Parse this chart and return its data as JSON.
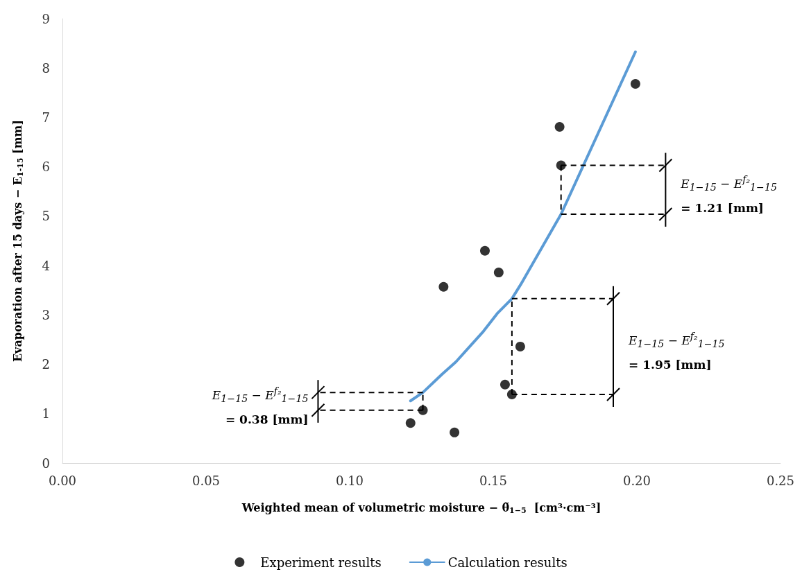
{
  "chart_data": {
    "type": "scatter",
    "xlabel": "Weighted mean of volumetric moisture − θ̃$_{1−5}$  [cm³·cm⁻³]",
    "ylabel": "Evaporation after 15 days − E$_{1-15}$ [mm]",
    "xlim": [
      0,
      0.25
    ],
    "ylim": [
      0,
      9
    ],
    "xticks": [
      {
        "value": 0,
        "label": "0.00"
      },
      0.05,
      {
        "value": 0.1,
        "label": "0.10"
      },
      0.15,
      {
        "value": 0.2,
        "label": "0.20"
      },
      0.25
    ],
    "yticks": [
      0,
      1,
      2,
      3,
      4,
      5,
      6,
      7,
      8,
      9
    ],
    "grid": false,
    "legend": "bottom",
    "series": [
      {
        "name": "Experiment results",
        "marker": "circle",
        "color": "#000000",
        "x": [
          0.1212,
          0.1255,
          0.1327,
          0.1365,
          0.1471,
          0.1519,
          0.1541,
          0.1565,
          0.1594,
          0.1731,
          0.1736,
          0.1995
        ],
        "values": [
          0.81,
          1.07,
          3.57,
          0.62,
          4.3,
          3.86,
          1.59,
          1.39,
          2.36,
          6.81,
          6.03,
          7.68
        ]
      },
      {
        "name": "Calculation results",
        "type": "line",
        "marker": "none",
        "color": "#5b9bd5",
        "x": [
          0.1212,
          0.1255,
          0.1322,
          0.137,
          0.1466,
          0.1514,
          0.1565,
          0.1596,
          0.1736,
          0.1995
        ],
        "values": [
          1.26,
          1.43,
          1.8,
          2.05,
          2.67,
          3.03,
          3.33,
          3.62,
          5.04,
          8.33
        ]
      }
    ],
    "annotations": [
      {
        "text": "E$_{1−15}$ − E$^{f₂}$$_{1−15}$\n= 0.38 [mm]",
        "x": 0.089,
        "y": 1.07
      },
      {
        "text": "E$_{1−15}$ − E$^{f₂}$$_{1−15}$\n= 1.95 [mm]",
        "x": 0.1918,
        "y": 1.39
      },
      {
        "text": "E$_{1−15}$ − E$^{f₂}$$_{1−15}$\n= 1.21 [mm]",
        "x": 0.21,
        "y": 6.03
      }
    ]
  }
}
